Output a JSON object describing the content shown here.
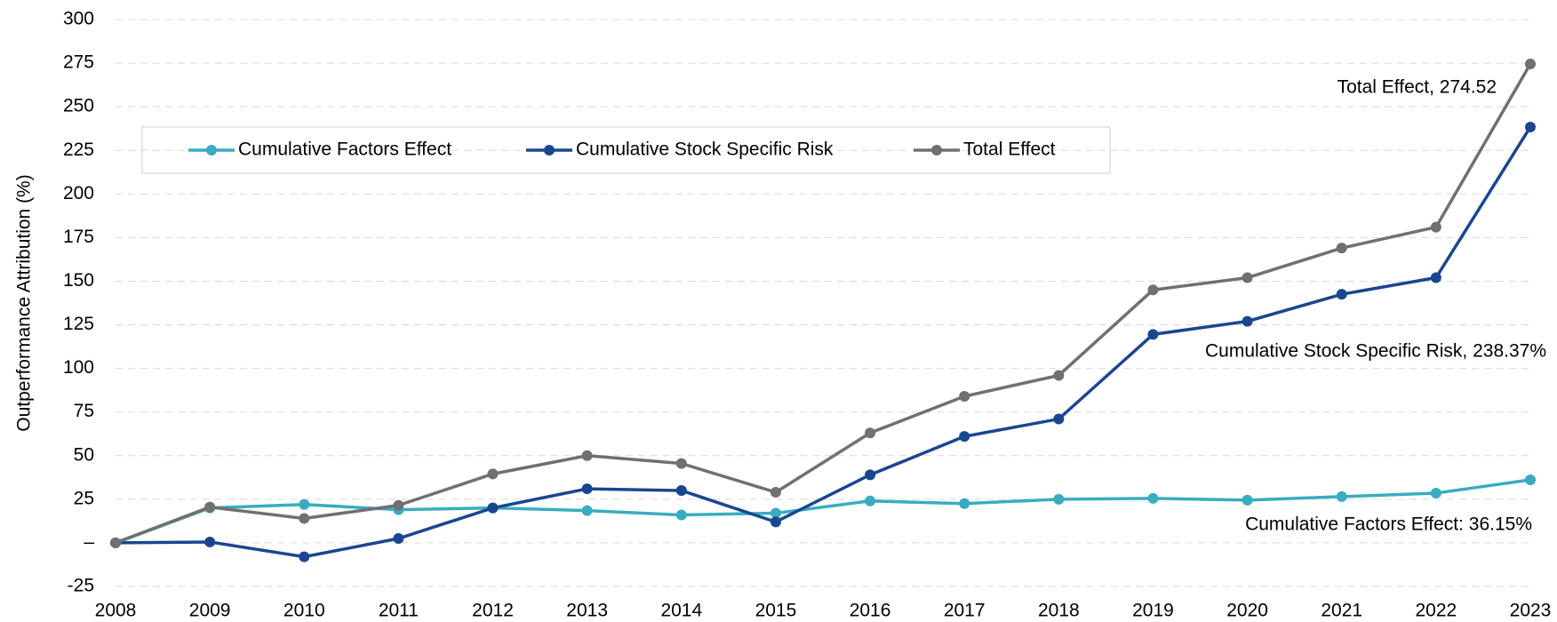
{
  "chart_data": {
    "type": "line",
    "y_label": "Outperformance Attribution (%)",
    "x": [
      2008,
      2009,
      2010,
      2011,
      2012,
      2013,
      2014,
      2015,
      2016,
      2017,
      2018,
      2019,
      2020,
      2021,
      2022,
      2023
    ],
    "xlim": [
      2008,
      2023
    ],
    "xticks": [
      2008,
      2009,
      2010,
      2011,
      2012,
      2013,
      2014,
      2015,
      2016,
      2017,
      2018,
      2019,
      2020,
      2021,
      2022,
      2023
    ],
    "ylim": [
      -25,
      300
    ],
    "yticks": [
      -25,
      {
        "value": 0,
        "label": "–"
      },
      25,
      50,
      75,
      100,
      125,
      150,
      175,
      200,
      225,
      250,
      275,
      300
    ],
    "grid": true,
    "legend": "top-left",
    "series": [
      {
        "name": "Cumulative Factors Effect",
        "color": "#3aacc0",
        "values": [
          0,
          20,
          22,
          19,
          20,
          18.5,
          16,
          17,
          24,
          22.5,
          25,
          25.5,
          24.5,
          26.5,
          28.5,
          36.15
        ]
      },
      {
        "name": "Cumulative Stock Specific Risk",
        "color": "#1a4690",
        "values": [
          0,
          0.5,
          -8,
          2.5,
          20,
          31,
          30,
          12,
          39,
          61,
          71,
          119.5,
          127,
          142.5,
          152,
          238.37
        ]
      },
      {
        "name": "Total Effect",
        "color": "#707070",
        "values": [
          0,
          20.5,
          14,
          21.5,
          39.5,
          50,
          45.5,
          29,
          63,
          84,
          96,
          145,
          152,
          169,
          181,
          274.52
        ]
      }
    ],
    "annotations": [
      "Cumulative Factors Effect: 36.15%",
      "Cumulative Stock Specific Risk, 238.37%",
      "Total Effect, 274.52"
    ]
  }
}
